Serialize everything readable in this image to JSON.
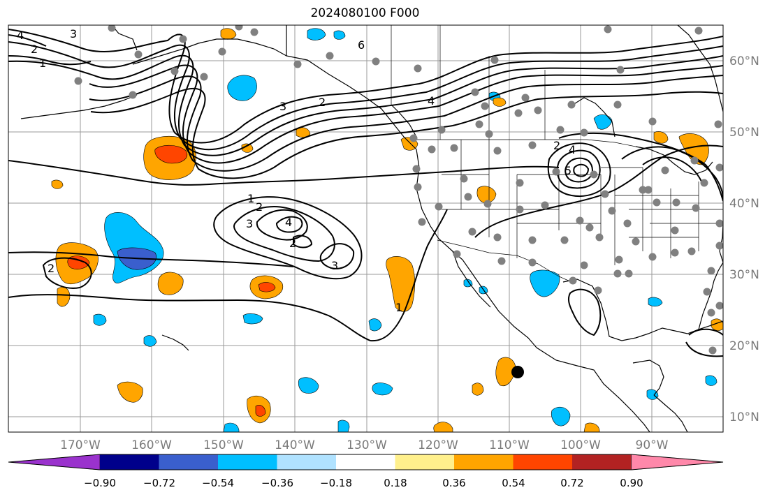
{
  "title": "2024080100 F000",
  "latitude_labels": [
    "60°N",
    "50°N",
    "40°N",
    "30°N",
    "20°N",
    "10°N"
  ],
  "longitude_labels": [
    "170°W",
    "160°W",
    "150°W",
    "140°W",
    "130°W",
    "120°W",
    "110°W",
    "100°W",
    "90°W"
  ],
  "colorbar": {
    "colors": [
      "#9a32cd",
      "#00008b",
      "#3a5fcd",
      "#00bfff",
      "#b0e2ff",
      "#ffffff",
      "#fff08c",
      "#ffa500",
      "#ff4500",
      "#b22222",
      "#ff88aa"
    ],
    "tick_labels": [
      "−0.90",
      "−0.72",
      "−0.54",
      "−0.36",
      "−0.18",
      "0.18",
      "0.36",
      "0.54",
      "0.72",
      "0.90"
    ]
  },
  "contour_labels": [
    "4",
    "3",
    "2",
    "1",
    "6",
    "3",
    "2",
    "4",
    "4",
    "5",
    "1",
    "2",
    "3",
    "4",
    "2",
    "3",
    "2",
    "1",
    "2"
  ],
  "colors": {
    "land_outline": "#000000",
    "grid": "#9a9a9a",
    "station_dot": "#808080",
    "marker": "#000000"
  }
}
